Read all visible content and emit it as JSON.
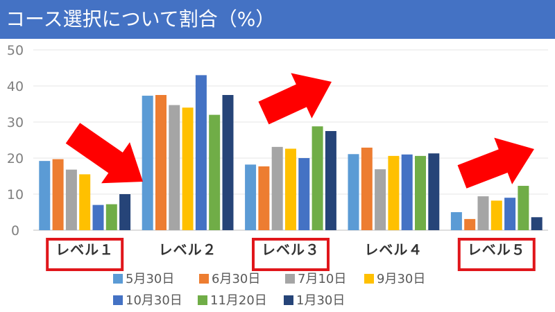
{
  "title": "コース選択について割合（%）",
  "colors": {
    "title_bar": "#4472c4",
    "highlight_box": "#e0161b",
    "arrow": "#ff0000"
  },
  "highlighted_categories": [
    0,
    2,
    4
  ],
  "arrow_categories": [
    0,
    2,
    4
  ],
  "chart_data": {
    "type": "bar",
    "title": "コース選択について割合（%）",
    "xlabel": "",
    "ylabel": "",
    "ylim": [
      0,
      50
    ],
    "yticks": [
      "0",
      "10",
      "20",
      "30",
      "40",
      "50"
    ],
    "grid": true,
    "legend_position": "bottom",
    "categories": [
      "レベル１",
      "レベル２",
      "レベル３",
      "レベル４",
      "レベル５"
    ],
    "series": [
      {
        "name": "5月30日",
        "color": "#5b9bd5",
        "values": [
          19.2,
          37.3,
          18.2,
          21.1,
          5.0
        ]
      },
      {
        "name": "6月30日",
        "color": "#ed7d31",
        "values": [
          19.7,
          37.5,
          17.7,
          22.9,
          3.1
        ]
      },
      {
        "name": "7月10日",
        "color": "#a5a5a5",
        "values": [
          16.8,
          34.7,
          23.1,
          16.9,
          9.4
        ]
      },
      {
        "name": "9月30日",
        "color": "#ffc000",
        "values": [
          15.5,
          34.0,
          22.6,
          20.6,
          8.2
        ]
      },
      {
        "name": "10月30日",
        "color": "#4472c4",
        "values": [
          7.0,
          43.0,
          20.0,
          21.0,
          9.0
        ]
      },
      {
        "name": "11月20日",
        "color": "#70ad47",
        "values": [
          7.2,
          32.0,
          28.8,
          20.6,
          12.3
        ]
      },
      {
        "name": "1月30日",
        "color": "#264478",
        "values": [
          10.0,
          37.5,
          27.5,
          21.3,
          3.6
        ]
      }
    ]
  }
}
